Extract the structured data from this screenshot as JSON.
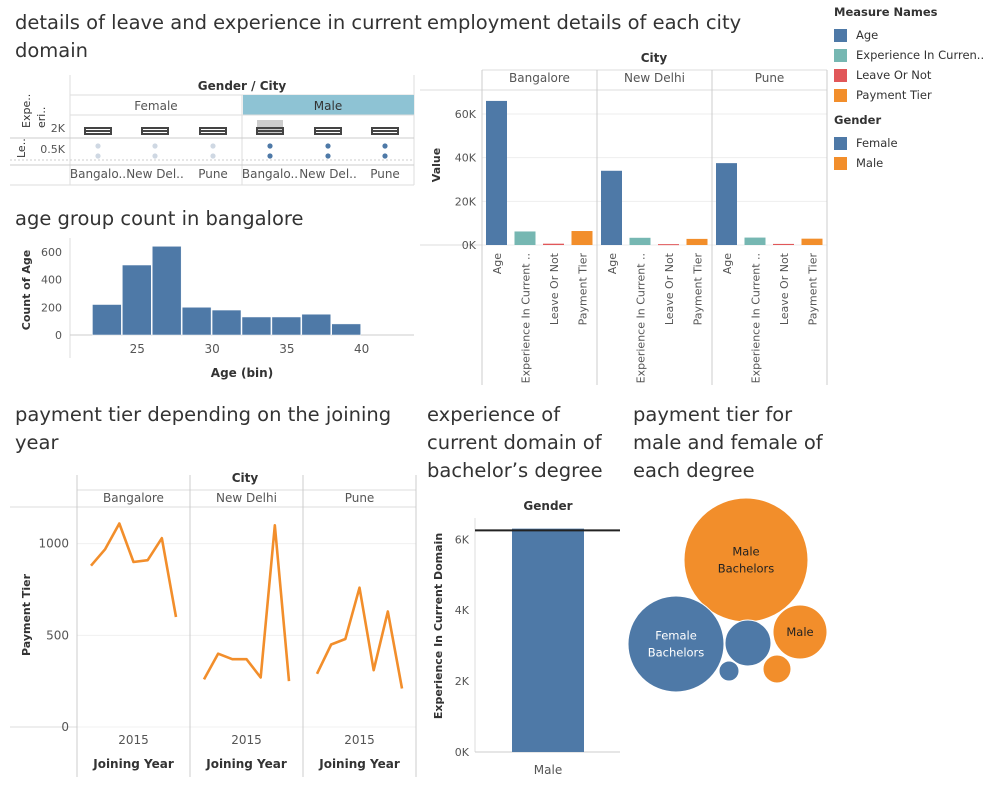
{
  "colors": {
    "blue": "#4e79a7",
    "teal": "#76b7b2",
    "red": "#e15759",
    "orange": "#f28e2b",
    "male_header": "#8ec3d4"
  },
  "sheets": {
    "leave": {
      "title_line1": "details of leave and experience in current",
      "title_line2": "domain",
      "header": "Gender / City",
      "groups": [
        "Female",
        "Male"
      ],
      "cities": [
        "Bangalo..",
        "New Del..",
        "Pune",
        "Bangalo..",
        "New Del..",
        "Pune"
      ],
      "row_labels": [
        "Expe.. eri..",
        "Le.."
      ],
      "ticks": [
        "2K",
        "0.5K"
      ]
    },
    "employment": {
      "title": "employment details of each city",
      "header": "City",
      "ylabel": "Value"
    },
    "age": {
      "title": "age group count in bangalore",
      "xlabel": "Age (bin)",
      "ylabel": "Count of Age"
    },
    "payment": {
      "title_line1": "payment tier depending on the joining",
      "title_line2": "year",
      "header": "City",
      "ylabel": "Payment Tier",
      "xlabel": "Joining Year"
    },
    "experience": {
      "title_line1": "experience of",
      "title_line2": "current domain of",
      "title_line3": "bachelor’s degree",
      "header": "Gender",
      "ylabel": "Experience In Current Domain"
    },
    "bubbles": {
      "title_line1": "payment tier  for",
      "title_line2": "male and female of",
      "title_line3": "each degree"
    }
  },
  "legend": {
    "measure_title": "Measure Names",
    "measures": [
      {
        "label": "Age",
        "color": "#4e79a7"
      },
      {
        "label": "Experience In Curren..",
        "color": "#76b7b2"
      },
      {
        "label": "Leave Or Not",
        "color": "#e15759"
      },
      {
        "label": "Payment Tier",
        "color": "#f28e2b"
      }
    ],
    "gender_title": "Gender",
    "genders": [
      {
        "label": "Female",
        "color": "#4e79a7"
      },
      {
        "label": "Male",
        "color": "#f28e2b"
      }
    ]
  },
  "chart_data": [
    {
      "type": "bar",
      "title": "employment details of each city",
      "ylabel": "Value",
      "facet_label": "City",
      "categories": [
        "Age",
        "Experience In Current ..",
        "Leave Or Not",
        "Payment Tier"
      ],
      "category_colors": [
        "#4e79a7",
        "#76b7b2",
        "#e15759",
        "#f28e2b"
      ],
      "facets": [
        {
          "name": "Bangalore",
          "values": [
            66000,
            6200,
            600,
            6400
          ]
        },
        {
          "name": "New Delhi",
          "values": [
            34000,
            3300,
            400,
            2800
          ]
        },
        {
          "name": "Pune",
          "values": [
            37500,
            3400,
            500,
            2900
          ]
        }
      ],
      "y_ticks": [
        0,
        20000,
        40000,
        60000
      ],
      "y_tick_labels": [
        "0K",
        "20K",
        "40K",
        "60K"
      ],
      "ylim": [
        0,
        71000
      ],
      "grid": true
    },
    {
      "type": "bar",
      "title": "age group count in bangalore",
      "xlabel": "Age (bin)",
      "ylabel": "Count of Age",
      "bin_width": 2,
      "bins": [
        22,
        24,
        26,
        28,
        30,
        32,
        34,
        36,
        38,
        40
      ],
      "values": [
        220,
        505,
        640,
        200,
        180,
        130,
        130,
        150,
        80,
        0
      ],
      "x_ticks": [
        25,
        30,
        35,
        40
      ],
      "y_ticks": [
        0,
        200,
        400,
        600
      ],
      "ylim": [
        0,
        700
      ]
    },
    {
      "type": "line",
      "title": "payment tier depending on the joining year",
      "xlabel": "Joining Year",
      "ylabel": "Payment Tier",
      "facet_label": "City",
      "x": [
        2012,
        2013,
        2014,
        2015,
        2016,
        2017,
        2018
      ],
      "facets": [
        {
          "name": "Bangalore",
          "values": [
            880,
            970,
            1110,
            900,
            910,
            1030,
            600
          ]
        },
        {
          "name": "New Delhi",
          "values": [
            260,
            400,
            370,
            370,
            270,
            1100,
            250
          ]
        },
        {
          "name": "Pune",
          "values": [
            290,
            450,
            480,
            760,
            310,
            630,
            210
          ]
        }
      ],
      "x_ticks": [
        2015
      ],
      "y_ticks": [
        0,
        500,
        1000
      ],
      "ylim": [
        0,
        1200
      ],
      "color": "#f28e2b"
    },
    {
      "type": "bar",
      "title": "experience of current domain of bachelor’s degree",
      "ylabel": "Experience In Current Domain",
      "facet_label": "Gender",
      "categories": [
        "Male"
      ],
      "values": [
        6300
      ],
      "reference_line": 6250,
      "y_ticks": [
        0,
        2000,
        4000,
        6000
      ],
      "y_tick_labels": [
        "0K",
        "2K",
        "4K",
        "6K"
      ],
      "ylim": [
        0,
        6600
      ]
    },
    {
      "type": "bubble",
      "title": "payment tier  for male and female of each degree",
      "bubbles": [
        {
          "label": "Male Bachelors",
          "color": "#f28e2b"
        },
        {
          "label": "Female Bachelors",
          "color": "#4e79a7"
        },
        {
          "label": "Male",
          "color": "#f28e2b"
        },
        {
          "label": "",
          "color": "#4e79a7"
        },
        {
          "label": "",
          "color": "#f28e2b"
        },
        {
          "label": "",
          "color": "#4e79a7"
        }
      ]
    }
  ]
}
